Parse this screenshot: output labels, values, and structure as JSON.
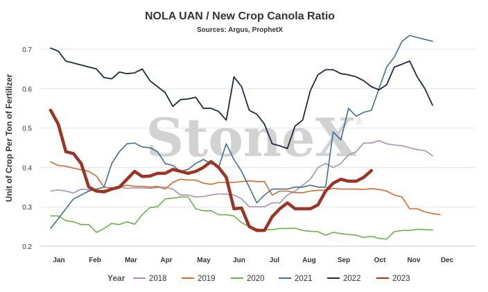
{
  "chart_data": {
    "type": "line",
    "title": "NOLA UAN / New Crop Canola Ratio",
    "subtitle": "Sources: Argus, ProphetX",
    "ylabel": "Unit of Crop Per Ton of Fertilizer",
    "xlabel": "",
    "ylim": [
      0.2,
      0.72
    ],
    "yticks": [
      0.2,
      0.3,
      0.4,
      0.5,
      0.6,
      0.7
    ],
    "ytick_labels": [
      "0.2",
      "0.3",
      "0.4",
      "0.5",
      "0.6",
      "0.7"
    ],
    "x_axis": "week of year",
    "xlim": [
      0,
      52
    ],
    "month_labels": [
      "Jan",
      "Feb",
      "Mar",
      "Apr",
      "May",
      "Jun",
      "Jul",
      "Aug",
      "Sep",
      "Oct",
      "Nov",
      "Dec"
    ],
    "grid": "horizontal",
    "legend": {
      "title": "Year",
      "position": "bottom"
    },
    "watermark": "StoneX",
    "series": [
      {
        "name": "2018",
        "color": "#a98db9",
        "width": 1.6,
        "values": [
          0.34,
          0.343,
          0.34,
          0.335,
          0.345,
          0.343,
          0.341,
          0.342,
          0.345,
          0.35,
          0.347,
          0.348,
          0.348,
          0.347,
          0.349,
          0.35,
          0.345,
          0.33,
          0.33,
          0.325,
          0.326,
          0.33,
          0.333,
          0.332,
          0.33,
          0.32,
          0.3,
          0.3,
          0.3,
          0.31,
          0.31,
          0.33,
          0.34,
          0.355,
          0.37,
          0.4,
          0.41,
          0.4,
          0.41,
          0.432,
          0.44,
          0.462,
          0.462,
          0.468,
          0.46,
          0.457,
          0.455,
          0.45,
          0.445,
          0.443,
          0.43
        ]
      },
      {
        "name": "2019",
        "color": "#d4682e",
        "width": 1.6,
        "values": [
          0.414,
          0.405,
          0.403,
          0.398,
          0.394,
          0.39,
          0.378,
          0.35,
          0.348,
          0.35,
          0.355,
          0.352,
          0.352,
          0.35,
          0.352,
          0.345,
          0.362,
          0.37,
          0.368,
          0.368,
          0.36,
          0.357,
          0.362,
          0.362,
          0.362,
          0.364,
          0.366,
          0.364,
          0.364,
          0.33,
          0.34,
          0.34,
          0.336,
          0.336,
          0.34,
          0.342,
          0.342,
          0.347,
          0.345,
          0.345,
          0.345,
          0.344,
          0.346,
          0.344,
          0.34,
          0.33,
          0.325,
          0.295,
          0.295,
          0.287,
          0.283,
          0.28
        ]
      },
      {
        "name": "2020",
        "color": "#6ab14a",
        "width": 1.6,
        "values": [
          0.277,
          0.277,
          0.265,
          0.262,
          0.255,
          0.255,
          0.235,
          0.245,
          0.258,
          0.255,
          0.262,
          0.256,
          0.28,
          0.298,
          0.3,
          0.32,
          0.322,
          0.325,
          0.325,
          0.295,
          0.29,
          0.29,
          0.28,
          0.28,
          0.277,
          0.26,
          0.25,
          0.244,
          0.242,
          0.242,
          0.245,
          0.245,
          0.246,
          0.24,
          0.238,
          0.237,
          0.228,
          0.235,
          0.232,
          0.23,
          0.228,
          0.222,
          0.225,
          0.22,
          0.218,
          0.237,
          0.24,
          0.24,
          0.243,
          0.242,
          0.241
        ]
      },
      {
        "name": "2021",
        "color": "#3f6d98",
        "width": 1.6,
        "values": [
          0.245,
          0.27,
          0.295,
          0.32,
          0.33,
          0.34,
          0.345,
          0.35,
          0.41,
          0.44,
          0.46,
          0.462,
          0.452,
          0.45,
          0.44,
          0.41,
          0.405,
          0.39,
          0.395,
          0.41,
          0.42,
          0.41,
          0.4,
          0.46,
          0.42,
          0.39,
          0.35,
          0.31,
          0.33,
          0.345,
          0.345,
          0.345,
          0.35,
          0.35,
          0.355,
          0.35,
          0.35,
          0.49,
          0.47,
          0.55,
          0.53,
          0.54,
          0.545,
          0.6,
          0.655,
          0.68,
          0.72,
          0.735,
          0.73,
          0.725,
          0.72
        ]
      },
      {
        "name": "2022",
        "color": "#1b2a3c",
        "width": 1.8,
        "values": [
          0.703,
          0.695,
          0.67,
          0.665,
          0.66,
          0.655,
          0.65,
          0.628,
          0.625,
          0.642,
          0.638,
          0.64,
          0.65,
          0.62,
          0.605,
          0.59,
          0.555,
          0.572,
          0.574,
          0.578,
          0.55,
          0.55,
          0.542,
          0.52,
          0.63,
          0.605,
          0.545,
          0.535,
          0.51,
          0.46,
          0.455,
          0.448,
          0.505,
          0.52,
          0.595,
          0.635,
          0.648,
          0.648,
          0.638,
          0.635,
          0.63,
          0.62,
          0.605,
          0.597,
          0.61,
          0.655,
          0.662,
          0.67,
          0.63,
          0.6,
          0.558
        ]
      },
      {
        "name": "2023",
        "color": "#9e3223",
        "width": 4.5,
        "values": [
          0.545,
          0.51,
          0.44,
          0.435,
          0.41,
          0.35,
          0.34,
          0.338,
          0.345,
          0.35,
          0.37,
          0.39,
          0.377,
          0.378,
          0.385,
          0.385,
          0.395,
          0.39,
          0.385,
          0.39,
          0.4,
          0.415,
          0.4,
          0.375,
          0.295,
          0.297,
          0.25,
          0.24,
          0.24,
          0.275,
          0.295,
          0.31,
          0.295,
          0.295,
          0.295,
          0.305,
          0.34,
          0.36,
          0.37,
          0.365,
          0.365,
          0.375,
          0.392
        ]
      }
    ]
  }
}
